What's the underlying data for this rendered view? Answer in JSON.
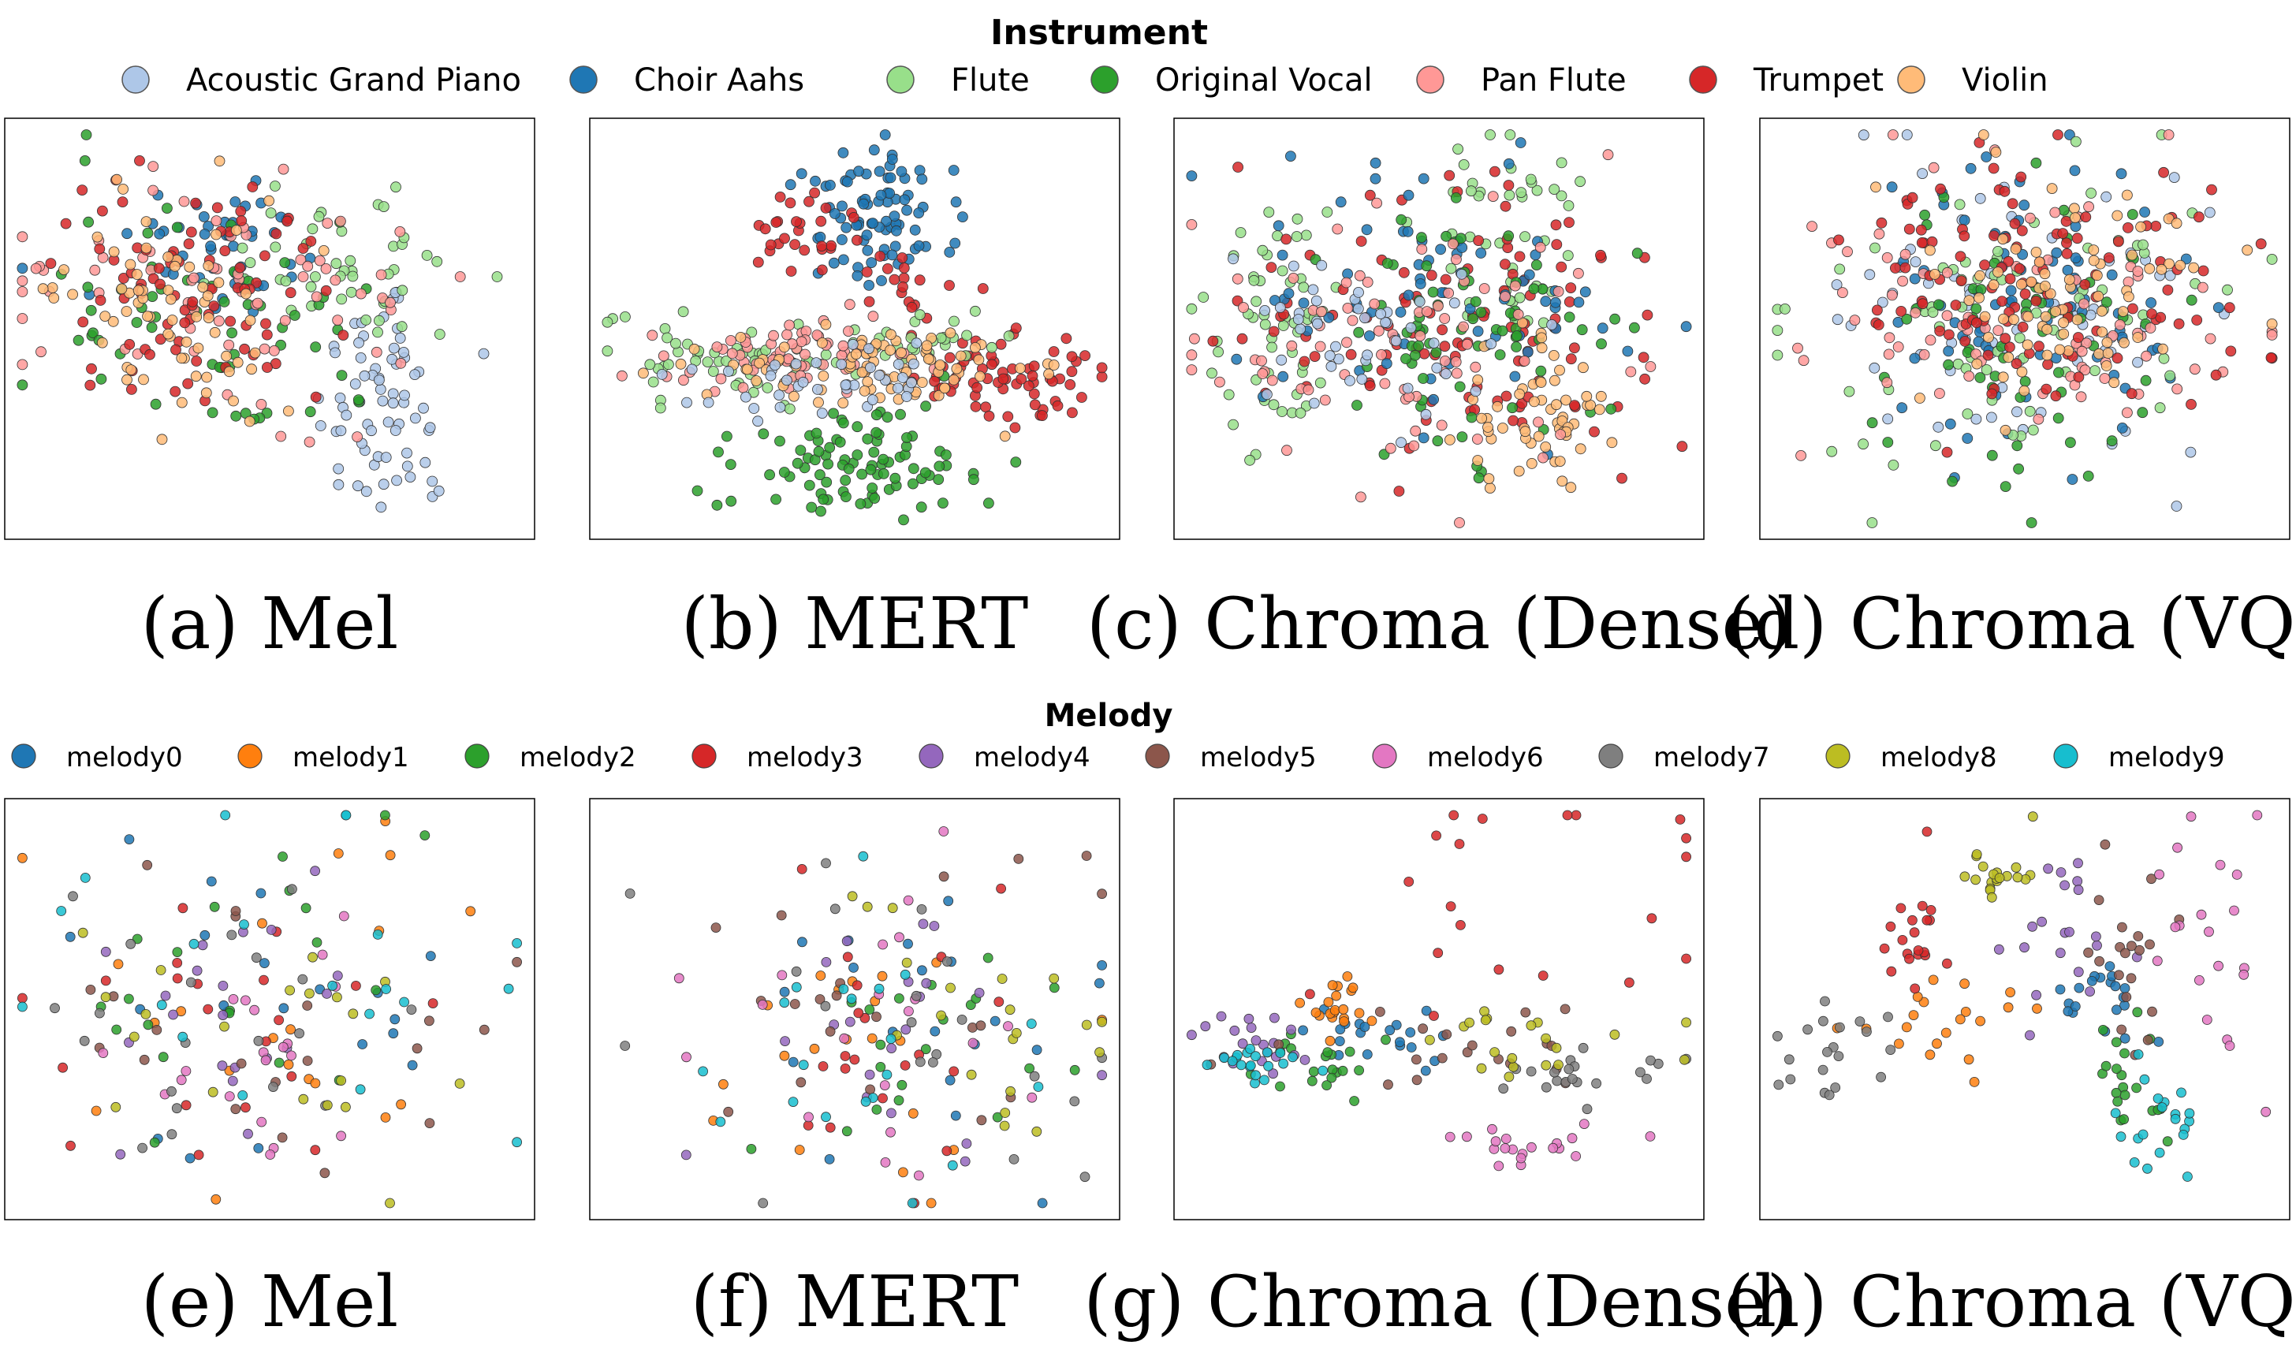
{
  "legends": {
    "instrument": {
      "title": "Instrument",
      "entries": [
        {
          "label": "Acoustic Grand Piano",
          "color": "#aec7e8"
        },
        {
          "label": "Choir Aahs",
          "color": "#1f77b4"
        },
        {
          "label": "Flute",
          "color": "#98df8a"
        },
        {
          "label": "Original Vocal",
          "color": "#2ca02c"
        },
        {
          "label": "Pan Flute",
          "color": "#ff9896"
        },
        {
          "label": "Trumpet",
          "color": "#d62728"
        },
        {
          "label": "Violin",
          "color": "#ffbb78"
        }
      ]
    },
    "melody": {
      "title": "Melody",
      "entries": [
        {
          "label": "melody0",
          "color": "#1f77b4"
        },
        {
          "label": "melody1",
          "color": "#ff7f0e"
        },
        {
          "label": "melody2",
          "color": "#2ca02c"
        },
        {
          "label": "melody3",
          "color": "#d62728"
        },
        {
          "label": "melody4",
          "color": "#9467bd"
        },
        {
          "label": "melody5",
          "color": "#8c564b"
        },
        {
          "label": "melody6",
          "color": "#e377c2"
        },
        {
          "label": "melody7",
          "color": "#7f7f7f"
        },
        {
          "label": "melody8",
          "color": "#bcbd22"
        },
        {
          "label": "melody9",
          "color": "#17becf"
        }
      ]
    }
  },
  "chart_data": [
    {
      "type": "scatter",
      "caption": "(a) Mel",
      "legend": "instrument",
      "xlim": [
        0,
        100
      ],
      "ylim": [
        0,
        100
      ],
      "clusters": [
        {
          "series": "Acoustic Grand Piano",
          "n": 70,
          "cx": 73,
          "cy": 68,
          "sx": 7,
          "sy": 16
        },
        {
          "series": "Choir Aahs",
          "n": 45,
          "cx": 40,
          "cy": 30,
          "sx": 10,
          "sy": 10
        },
        {
          "series": "Flute",
          "n": 45,
          "cx": 65,
          "cy": 35,
          "sx": 13,
          "sy": 12
        },
        {
          "series": "Original Vocal",
          "n": 60,
          "cx": 40,
          "cy": 47,
          "sx": 17,
          "sy": 17
        },
        {
          "series": "Pan Flute",
          "n": 70,
          "cx": 40,
          "cy": 40,
          "sx": 20,
          "sy": 16
        },
        {
          "series": "Trumpet",
          "n": 85,
          "cx": 34,
          "cy": 40,
          "sx": 13,
          "sy": 14
        },
        {
          "series": "Violin",
          "n": 70,
          "cx": 30,
          "cy": 45,
          "sx": 11,
          "sy": 13
        }
      ]
    },
    {
      "type": "scatter",
      "caption": "(b) MERT",
      "legend": "instrument",
      "xlim": [
        0,
        100
      ],
      "ylim": [
        0,
        100
      ],
      "clusters": [
        {
          "series": "Choir Aahs",
          "n": 85,
          "cx": 56,
          "cy": 20,
          "sx": 8,
          "sy": 9
        },
        {
          "series": "Trumpet",
          "n": 30,
          "cx": 40,
          "cy": 25,
          "sx": 5,
          "sy": 5
        },
        {
          "series": "Trumpet",
          "n": 70,
          "cx": 80,
          "cy": 63,
          "sx": 9,
          "sy": 6
        },
        {
          "series": "Trumpet",
          "n": 15,
          "cx": 60,
          "cy": 40,
          "sx": 3,
          "sy": 5
        },
        {
          "series": "Original Vocal",
          "n": 95,
          "cx": 50,
          "cy": 83,
          "sx": 13,
          "sy": 7
        },
        {
          "series": "Flute",
          "n": 55,
          "cx": 25,
          "cy": 58,
          "sx": 13,
          "sy": 5
        },
        {
          "series": "Flute",
          "n": 25,
          "cx": 65,
          "cy": 52,
          "sx": 7,
          "sy": 4
        },
        {
          "series": "Pan Flute",
          "n": 70,
          "cx": 37,
          "cy": 57,
          "sx": 13,
          "sy": 5
        },
        {
          "series": "Violin",
          "n": 90,
          "cx": 55,
          "cy": 60,
          "sx": 15,
          "sy": 5
        },
        {
          "series": "Acoustic Grand Piano",
          "n": 40,
          "cx": 45,
          "cy": 63,
          "sx": 12,
          "sy": 5
        }
      ]
    },
    {
      "type": "scatter",
      "caption": "(c) Chroma (Dense)",
      "legend": "instrument",
      "xlim": [
        0,
        100
      ],
      "ylim": [
        0,
        100
      ],
      "clusters": [
        {
          "series": "Flute",
          "n": 55,
          "cx": 18,
          "cy": 48,
          "sx": 9,
          "sy": 17
        },
        {
          "series": "Flute",
          "n": 45,
          "cx": 65,
          "cy": 25,
          "sx": 8,
          "sy": 14
        },
        {
          "series": "Trumpet",
          "n": 110,
          "cx": 55,
          "cy": 52,
          "sx": 22,
          "sy": 18
        },
        {
          "series": "Choir Aahs",
          "n": 75,
          "cx": 52,
          "cy": 43,
          "sx": 18,
          "sy": 15
        },
        {
          "series": "Original Vocal",
          "n": 75,
          "cx": 55,
          "cy": 50,
          "sx": 15,
          "sy": 15
        },
        {
          "series": "Violin",
          "n": 60,
          "cx": 70,
          "cy": 72,
          "sx": 8,
          "sy": 10
        },
        {
          "series": "Pan Flute",
          "n": 80,
          "cx": 42,
          "cy": 55,
          "sx": 20,
          "sy": 17
        },
        {
          "series": "Acoustic Grand Piano",
          "n": 45,
          "cx": 35,
          "cy": 50,
          "sx": 13,
          "sy": 12
        }
      ]
    },
    {
      "type": "scatter",
      "caption": "(d) Chroma (VQ)",
      "legend": "instrument",
      "xlim": [
        0,
        100
      ],
      "ylim": [
        0,
        100
      ],
      "clusters": [
        {
          "series": "Acoustic Grand Piano",
          "n": 70,
          "cx": 50,
          "cy": 45,
          "sx": 20,
          "sy": 20
        },
        {
          "series": "Choir Aahs",
          "n": 75,
          "cx": 50,
          "cy": 45,
          "sx": 15,
          "sy": 18
        },
        {
          "series": "Flute",
          "n": 70,
          "cx": 45,
          "cy": 50,
          "sx": 22,
          "sy": 20
        },
        {
          "series": "Original Vocal",
          "n": 60,
          "cx": 50,
          "cy": 55,
          "sx": 15,
          "sy": 20
        },
        {
          "series": "Pan Flute",
          "n": 80,
          "cx": 50,
          "cy": 45,
          "sx": 22,
          "sy": 20
        },
        {
          "series": "Trumpet",
          "n": 120,
          "cx": 55,
          "cy": 40,
          "sx": 18,
          "sy": 15
        },
        {
          "series": "Violin",
          "n": 80,
          "cx": 55,
          "cy": 40,
          "sx": 20,
          "sy": 15
        }
      ]
    },
    {
      "type": "scatter",
      "caption": "(e) Mel",
      "legend": "melody",
      "xlim": [
        0,
        100
      ],
      "ylim": [
        0,
        100
      ],
      "clusters": [
        {
          "series": "melody0",
          "n": 20,
          "cx": 52,
          "cy": 52,
          "sx": 20,
          "sy": 20
        },
        {
          "series": "melody1",
          "n": 20,
          "cx": 52,
          "cy": 50,
          "sx": 20,
          "sy": 22
        },
        {
          "series": "melody2",
          "n": 20,
          "cx": 50,
          "cy": 45,
          "sx": 20,
          "sy": 20
        },
        {
          "series": "melody3",
          "n": 20,
          "cx": 45,
          "cy": 55,
          "sx": 22,
          "sy": 20
        },
        {
          "series": "melody4",
          "n": 20,
          "cx": 40,
          "cy": 55,
          "sx": 20,
          "sy": 20
        },
        {
          "series": "melody5",
          "n": 20,
          "cx": 50,
          "cy": 55,
          "sx": 20,
          "sy": 20
        },
        {
          "series": "melody6",
          "n": 20,
          "cx": 45,
          "cy": 60,
          "sx": 18,
          "sy": 18
        },
        {
          "series": "melody7",
          "n": 20,
          "cx": 45,
          "cy": 55,
          "sx": 22,
          "sy": 22
        },
        {
          "series": "melody8",
          "n": 20,
          "cx": 50,
          "cy": 60,
          "sx": 18,
          "sy": 18
        },
        {
          "series": "melody9",
          "n": 20,
          "cx": 55,
          "cy": 40,
          "sx": 22,
          "sy": 20
        }
      ]
    },
    {
      "type": "scatter",
      "caption": "(f) MERT",
      "legend": "melody",
      "xlim": [
        0,
        100
      ],
      "ylim": [
        0,
        100
      ],
      "clusters": [
        {
          "series": "melody0",
          "n": 20,
          "cx": 60,
          "cy": 55,
          "sx": 20,
          "sy": 20
        },
        {
          "series": "melody1",
          "n": 20,
          "cx": 50,
          "cy": 55,
          "sx": 22,
          "sy": 20
        },
        {
          "series": "melody2",
          "n": 20,
          "cx": 60,
          "cy": 55,
          "sx": 20,
          "sy": 20
        },
        {
          "series": "melody3",
          "n": 20,
          "cx": 55,
          "cy": 55,
          "sx": 22,
          "sy": 22
        },
        {
          "series": "melody4",
          "n": 20,
          "cx": 60,
          "cy": 55,
          "sx": 20,
          "sy": 20
        },
        {
          "series": "melody5",
          "n": 20,
          "cx": 60,
          "cy": 50,
          "sx": 20,
          "sy": 22
        },
        {
          "series": "melody6",
          "n": 20,
          "cx": 60,
          "cy": 55,
          "sx": 20,
          "sy": 20
        },
        {
          "series": "melody7",
          "n": 20,
          "cx": 60,
          "cy": 55,
          "sx": 18,
          "sy": 20
        },
        {
          "series": "melody8",
          "n": 20,
          "cx": 70,
          "cy": 50,
          "sx": 15,
          "sy": 18
        },
        {
          "series": "melody9",
          "n": 20,
          "cx": 50,
          "cy": 60,
          "sx": 22,
          "sy": 20
        }
      ]
    },
    {
      "type": "scatter",
      "caption": "(g) Chroma (Dense)",
      "legend": "melody",
      "xlim": [
        0,
        100
      ],
      "ylim": [
        0,
        100
      ],
      "clusters": [
        {
          "series": "melody0",
          "n": 20,
          "cx": 40,
          "cy": 57,
          "sx": 12,
          "sy": 4
        },
        {
          "series": "melody1",
          "n": 20,
          "cx": 30,
          "cy": 50,
          "sx": 3,
          "sy": 4
        },
        {
          "series": "melody2",
          "n": 20,
          "cx": 25,
          "cy": 63,
          "sx": 8,
          "sy": 5
        },
        {
          "series": "melody3",
          "n": 20,
          "cx": 65,
          "cy": 18,
          "sx": 20,
          "sy": 16
        },
        {
          "series": "melody4",
          "n": 20,
          "cx": 15,
          "cy": 60,
          "sx": 8,
          "sy": 4
        },
        {
          "series": "melody5",
          "n": 20,
          "cx": 60,
          "cy": 60,
          "sx": 20,
          "sy": 5
        },
        {
          "series": "melody6",
          "n": 20,
          "cx": 65,
          "cy": 85,
          "sx": 12,
          "sy": 5
        },
        {
          "series": "melody7",
          "n": 20,
          "cx": 75,
          "cy": 65,
          "sx": 15,
          "sy": 4
        },
        {
          "series": "melody8",
          "n": 20,
          "cx": 65,
          "cy": 57,
          "sx": 18,
          "sy": 5
        },
        {
          "series": "melody9",
          "n": 20,
          "cx": 15,
          "cy": 64,
          "sx": 5,
          "sy": 3
        }
      ]
    },
    {
      "type": "scatter",
      "caption": "(h) Chroma (VQ)",
      "legend": "melody",
      "xlim": [
        0,
        100
      ],
      "ylim": [
        0,
        100
      ],
      "clusters": [
        {
          "series": "melody0",
          "n": 20,
          "cx": 65,
          "cy": 47,
          "sx": 6,
          "sy": 5
        },
        {
          "series": "melody1",
          "n": 20,
          "cx": 38,
          "cy": 53,
          "sx": 12,
          "sy": 6
        },
        {
          "series": "melody2",
          "n": 20,
          "cx": 70,
          "cy": 68,
          "sx": 4,
          "sy": 8
        },
        {
          "series": "melody3",
          "n": 20,
          "cx": 28,
          "cy": 30,
          "sx": 3,
          "sy": 8
        },
        {
          "series": "melody4",
          "n": 20,
          "cx": 58,
          "cy": 35,
          "sx": 6,
          "sy": 10
        },
        {
          "series": "melody5",
          "n": 20,
          "cx": 70,
          "cy": 35,
          "sx": 5,
          "sy": 10
        },
        {
          "series": "melody6",
          "n": 20,
          "cx": 85,
          "cy": 25,
          "sx": 7,
          "sy": 18
        },
        {
          "series": "melody7",
          "n": 20,
          "cx": 12,
          "cy": 62,
          "sx": 7,
          "sy": 5
        },
        {
          "series": "melody8",
          "n": 20,
          "cx": 45,
          "cy": 15,
          "sx": 4,
          "sy": 4
        },
        {
          "series": "melody9",
          "n": 20,
          "cx": 75,
          "cy": 78,
          "sx": 5,
          "sy": 9
        }
      ]
    }
  ]
}
